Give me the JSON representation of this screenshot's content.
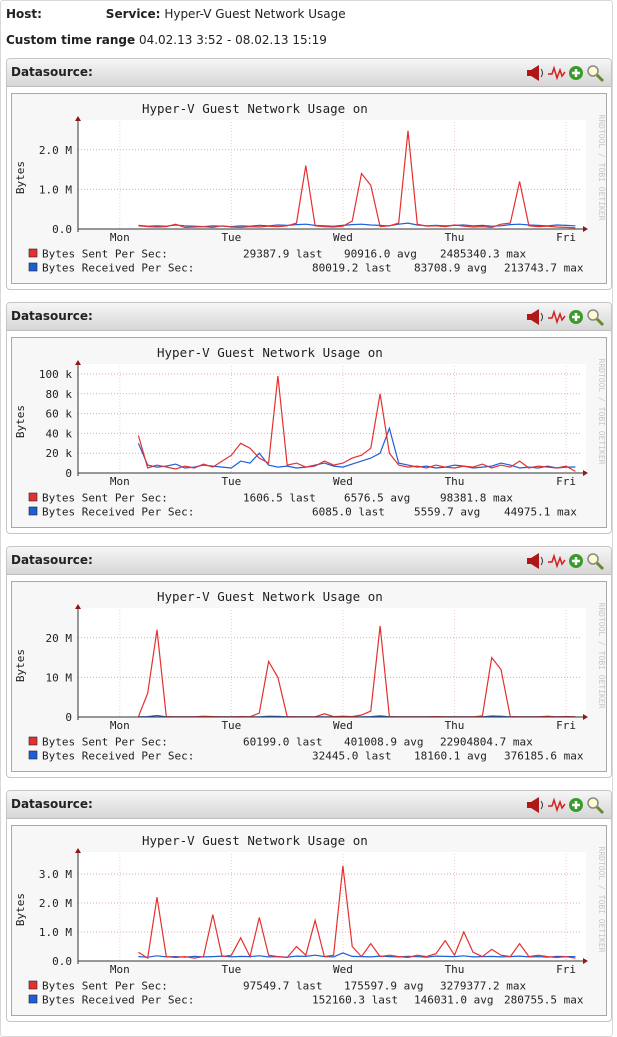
{
  "header": {
    "host_label": "Host:",
    "service_label": "Service:",
    "service": "Hyper-V Guest Network Usage",
    "range_label": "Custom time range",
    "range": "04.02.13 3:52 - 08.02.13 15:19"
  },
  "panels": [
    {
      "datasource_label": "Datasource:"
    },
    {
      "datasource_label": "Datasource:"
    },
    {
      "datasource_label": "Datasource:"
    },
    {
      "datasource_label": "Datasource:"
    }
  ],
  "chart_data": [
    {
      "type": "line",
      "title": "Hyper-V Guest Network Usage on",
      "y_label": "Bytes",
      "watermark": "RRDTOOL / TOBI OETIKER",
      "grid": true,
      "categories": [
        null,
        null,
        null,
        null,
        "Mon",
        null,
        null,
        null,
        null,
        null,
        null,
        null,
        null,
        null,
        null,
        null,
        "Tue",
        null,
        null,
        null,
        null,
        null,
        null,
        null,
        null,
        null,
        null,
        null,
        "Wed",
        null,
        null,
        null,
        null,
        null,
        null,
        null,
        null,
        null,
        null,
        null,
        "Thu",
        null,
        null,
        null,
        null,
        null,
        null,
        null,
        null,
        null,
        null,
        null,
        "Fri",
        null
      ],
      "ylim": [
        0,
        2600000
      ],
      "yticks": [
        {
          "value": 0,
          "label": "0.0"
        },
        {
          "value": 1000000,
          "label": "1.0 M"
        },
        {
          "value": 2000000,
          "label": "2.0 M"
        }
      ],
      "series": [
        {
          "name": "Bytes Sent Per Sec:",
          "color": "#e53030",
          "values": [
            null,
            null,
            null,
            null,
            null,
            null,
            80000,
            60000,
            50000,
            60000,
            120000,
            40000,
            50000,
            60000,
            40000,
            80000,
            50000,
            40000,
            60000,
            50000,
            70000,
            60000,
            80000,
            150000,
            1600000,
            80000,
            60000,
            50000,
            70000,
            200000,
            1400000,
            1100000,
            60000,
            80000,
            150000,
            2480000,
            120000,
            70000,
            80000,
            60000,
            100000,
            70000,
            50000,
            60000,
            40000,
            120000,
            150000,
            1200000,
            80000,
            60000,
            70000,
            50000,
            40000,
            29387.9
          ],
          "stats": [
            {
              "value": "29387.9",
              "label": "last"
            },
            {
              "value": "90916.0",
              "label": "avg"
            },
            {
              "value": "2485340.3",
              "label": "max"
            }
          ]
        },
        {
          "name": "Bytes Received Per Sec:",
          "color": "#1c5fd8",
          "values": [
            null,
            null,
            null,
            null,
            null,
            null,
            90000,
            70000,
            80000,
            70000,
            100000,
            80000,
            70000,
            60000,
            80000,
            70000,
            60000,
            80000,
            70000,
            90000,
            80000,
            100000,
            90000,
            110000,
            120000,
            90000,
            80000,
            70000,
            90000,
            110000,
            120000,
            100000,
            90000,
            80000,
            120000,
            150000,
            100000,
            80000,
            90000,
            80000,
            90000,
            100000,
            80000,
            90000,
            70000,
            80000,
            110000,
            120000,
            100000,
            90000,
            80000,
            100000,
            90000,
            80019.2
          ],
          "stats": [
            {
              "value": "80019.2",
              "label": "last"
            },
            {
              "value": "83708.9",
              "label": "avg"
            },
            {
              "value": "213743.7",
              "label": "max"
            }
          ]
        }
      ]
    },
    {
      "type": "line",
      "title": "Hyper-V Guest Network Usage on",
      "y_label": "Bytes",
      "watermark": "RRDTOOL / TOBI OETIKER",
      "grid": true,
      "categories": [
        null,
        null,
        null,
        null,
        "Mon",
        null,
        null,
        null,
        null,
        null,
        null,
        null,
        null,
        null,
        null,
        null,
        "Tue",
        null,
        null,
        null,
        null,
        null,
        null,
        null,
        null,
        null,
        null,
        null,
        "Wed",
        null,
        null,
        null,
        null,
        null,
        null,
        null,
        null,
        null,
        null,
        null,
        "Thu",
        null,
        null,
        null,
        null,
        null,
        null,
        null,
        null,
        null,
        null,
        null,
        "Fri",
        null
      ],
      "ylim": [
        0,
        104000
      ],
      "yticks": [
        0,
        {
          "value": 20000,
          "label": "20 k"
        },
        {
          "value": 40000,
          "label": "40 k"
        },
        {
          "value": 60000,
          "label": "60 k"
        },
        {
          "value": 80000,
          "label": "80 k"
        },
        {
          "value": 100000,
          "label": "100 k"
        }
      ],
      "series": [
        {
          "name": "Bytes Sent Per Sec:",
          "color": "#e53030",
          "values": [
            null,
            null,
            null,
            null,
            null,
            null,
            38000,
            5000,
            8000,
            6000,
            4000,
            7000,
            5000,
            9000,
            6000,
            12000,
            18000,
            30000,
            25000,
            15000,
            10000,
            98000,
            8000,
            10000,
            6000,
            7000,
            12000,
            8000,
            10000,
            15000,
            18000,
            25000,
            80000,
            20000,
            8000,
            6000,
            7000,
            5000,
            8000,
            6000,
            5000,
            7000,
            6000,
            9000,
            5000,
            8000,
            6000,
            12000,
            5000,
            7000,
            6000,
            5000,
            7000,
            1606.5
          ],
          "stats": [
            {
              "value": "1606.5",
              "label": "last"
            },
            {
              "value": "6576.5",
              "label": "avg"
            },
            {
              "value": "98381.8",
              "label": "max"
            }
          ]
        },
        {
          "name": "Bytes Received Per Sec:",
          "color": "#1c5fd8",
          "values": [
            null,
            null,
            null,
            null,
            null,
            null,
            30000,
            8000,
            6000,
            7000,
            9000,
            5000,
            6000,
            8000,
            7000,
            6000,
            5000,
            12000,
            10000,
            20000,
            8000,
            6000,
            7000,
            5000,
            6000,
            8000,
            10000,
            7000,
            6000,
            9000,
            12000,
            15000,
            20000,
            45000,
            10000,
            8000,
            6000,
            7000,
            5000,
            6000,
            8000,
            7000,
            5000,
            6000,
            7000,
            10000,
            8000,
            5000,
            6000,
            5000,
            7000,
            5000,
            6000,
            6085.0
          ],
          "stats": [
            {
              "value": "6085.0",
              "label": "last"
            },
            {
              "value": "5559.7",
              "label": "avg"
            },
            {
              "value": "44975.1",
              "label": "max"
            }
          ]
        }
      ]
    },
    {
      "type": "line",
      "title": "Hyper-V Guest Network Usage on",
      "y_label": "Bytes",
      "watermark": "RRDTOOL / TOBI OETIKER",
      "grid": true,
      "categories": [
        null,
        null,
        null,
        null,
        "Mon",
        null,
        null,
        null,
        null,
        null,
        null,
        null,
        null,
        null,
        null,
        null,
        "Tue",
        null,
        null,
        null,
        null,
        null,
        null,
        null,
        null,
        null,
        null,
        null,
        "Wed",
        null,
        null,
        null,
        null,
        null,
        null,
        null,
        null,
        null,
        null,
        null,
        "Thu",
        null,
        null,
        null,
        null,
        null,
        null,
        null,
        null,
        null,
        null,
        null,
        "Fri",
        null
      ],
      "ylim": [
        0,
        26000000
      ],
      "yticks": [
        0,
        {
          "value": 10000000,
          "label": "10 M"
        },
        {
          "value": 20000000,
          "label": "20 M"
        }
      ],
      "series": [
        {
          "name": "Bytes Sent Per Sec:",
          "color": "#e53030",
          "values": [
            null,
            null,
            null,
            null,
            null,
            null,
            100000,
            6000000,
            22000000,
            100000,
            50000,
            50000,
            50000,
            200000,
            100000,
            50000,
            50000,
            100000,
            50000,
            1000000,
            14000000,
            10000000,
            100000,
            50000,
            50000,
            50000,
            800000,
            100000,
            200000,
            100000,
            500000,
            1500000,
            23000000,
            100000,
            50000,
            50000,
            50000,
            50000,
            100000,
            50000,
            50000,
            50000,
            50000,
            300000,
            15000000,
            12000000,
            100000,
            50000,
            50000,
            50000,
            200000,
            50000,
            100000,
            60199.0
          ],
          "stats": [
            {
              "value": "60199.0",
              "label": "last"
            },
            {
              "value": "401008.9",
              "label": "avg"
            },
            {
              "value": "22904804.7",
              "label": "max"
            }
          ]
        },
        {
          "name": "Bytes Received Per Sec:",
          "color": "#1c5fd8",
          "values": [
            null,
            null,
            null,
            null,
            null,
            null,
            30000,
            100000,
            376000,
            30000,
            20000,
            20000,
            20000,
            30000,
            20000,
            20000,
            20000,
            20000,
            30000,
            20000,
            200000,
            150000,
            20000,
            20000,
            20000,
            20000,
            20000,
            20000,
            30000,
            20000,
            20000,
            100000,
            300000,
            20000,
            20000,
            20000,
            20000,
            20000,
            20000,
            20000,
            20000,
            20000,
            20000,
            20000,
            250000,
            200000,
            20000,
            20000,
            20000,
            20000,
            20000,
            20000,
            20000,
            32445.0
          ],
          "stats": [
            {
              "value": "32445.0",
              "label": "last"
            },
            {
              "value": "18160.1",
              "label": "avg"
            },
            {
              "value": "376185.6",
              "label": "max"
            }
          ]
        }
      ]
    },
    {
      "type": "line",
      "title": "Hyper-V Guest Network Usage on",
      "y_label": "Bytes",
      "watermark": "RRDTOOL / TOBI OETIKER",
      "grid": true,
      "categories": [
        null,
        null,
        null,
        null,
        "Mon",
        null,
        null,
        null,
        null,
        null,
        null,
        null,
        null,
        null,
        null,
        null,
        "Tue",
        null,
        null,
        null,
        null,
        null,
        null,
        null,
        null,
        null,
        null,
        null,
        "Wed",
        null,
        null,
        null,
        null,
        null,
        null,
        null,
        null,
        null,
        null,
        null,
        "Thu",
        null,
        null,
        null,
        null,
        null,
        null,
        null,
        null,
        null,
        null,
        null,
        "Fri",
        null
      ],
      "ylim": [
        0,
        3550000
      ],
      "yticks": [
        {
          "value": 0,
          "label": "0.0"
        },
        {
          "value": 1000000,
          "label": "1.0 M"
        },
        {
          "value": 2000000,
          "label": "2.0 M"
        },
        {
          "value": 3000000,
          "label": "3.0 M"
        }
      ],
      "series": [
        {
          "name": "Bytes Sent Per Sec:",
          "color": "#e53030",
          "values": [
            null,
            null,
            null,
            null,
            null,
            null,
            300000,
            100000,
            2200000,
            150000,
            120000,
            150000,
            100000,
            150000,
            1600000,
            150000,
            200000,
            800000,
            150000,
            1500000,
            200000,
            150000,
            120000,
            500000,
            200000,
            1400000,
            150000,
            200000,
            3280000,
            500000,
            150000,
            600000,
            150000,
            200000,
            150000,
            120000,
            200000,
            150000,
            250000,
            700000,
            200000,
            1000000,
            300000,
            150000,
            400000,
            200000,
            150000,
            600000,
            150000,
            200000,
            150000,
            120000,
            150000,
            97549.7
          ],
          "stats": [
            {
              "value": "97549.7",
              "label": "last"
            },
            {
              "value": "175597.9",
              "label": "avg"
            },
            {
              "value": "3279377.2",
              "label": "max"
            }
          ]
        },
        {
          "name": "Bytes Received Per Sec:",
          "color": "#1c5fd8",
          "values": [
            null,
            null,
            null,
            null,
            null,
            null,
            150000,
            130000,
            180000,
            140000,
            150000,
            130000,
            160000,
            140000,
            150000,
            170000,
            140000,
            160000,
            150000,
            180000,
            140000,
            150000,
            130000,
            170000,
            160000,
            200000,
            150000,
            140000,
            280000,
            160000,
            150000,
            140000,
            170000,
            150000,
            140000,
            160000,
            150000,
            130000,
            170000,
            160000,
            150000,
            180000,
            140000,
            150000,
            160000,
            140000,
            150000,
            170000,
            140000,
            150000,
            130000,
            160000,
            150000,
            152160.3
          ],
          "stats": [
            {
              "value": "152160.3",
              "label": "last"
            },
            {
              "value": "146031.0",
              "label": "avg"
            },
            {
              "value": "280755.5",
              "label": "max"
            }
          ]
        }
      ]
    }
  ]
}
